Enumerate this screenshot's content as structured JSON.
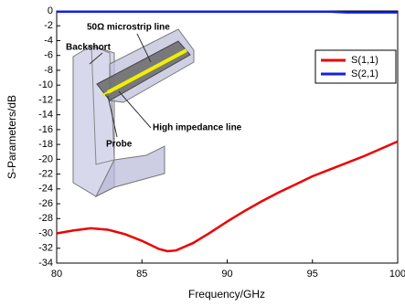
{
  "chart_data": {
    "type": "line",
    "xlabel": "Frequency/GHz",
    "ylabel": "S-Parameters/dB",
    "x": [
      80,
      81,
      82,
      83,
      84,
      85,
      86,
      86.5,
      87,
      88,
      89,
      90,
      91,
      92,
      93,
      94,
      95,
      96,
      97,
      98,
      99,
      100
    ],
    "series": [
      {
        "name": "S(1,1)",
        "color": "#ee0000",
        "values": [
          -30.0,
          -29.6,
          -29.3,
          -29.5,
          -30.1,
          -31.0,
          -32.1,
          -32.4,
          -32.3,
          -31.3,
          -29.9,
          -28.4,
          -27.0,
          -25.7,
          -24.5,
          -23.4,
          -22.3,
          -21.4,
          -20.5,
          -19.6,
          -18.6,
          -17.6
        ]
      },
      {
        "name": "S(2,1)",
        "color": "#1020e0",
        "values": [
          -0.1,
          -0.1,
          -0.1,
          -0.1,
          -0.1,
          -0.1,
          -0.1,
          -0.1,
          -0.1,
          -0.1,
          -0.1,
          -0.1,
          -0.1,
          -0.1,
          -0.1,
          -0.1,
          -0.1,
          -0.1,
          -0.2,
          -0.2,
          -0.2,
          -0.2
        ]
      }
    ],
    "xlim": [
      80,
      100
    ],
    "xticks": [
      80,
      85,
      90,
      95,
      100
    ],
    "ylim": [
      -34,
      0
    ],
    "yticks": [
      0,
      -2,
      -4,
      -6,
      -8,
      -10,
      -12,
      -14,
      -16,
      -18,
      -20,
      -22,
      -24,
      -26,
      -28,
      -30,
      -32,
      -34
    ],
    "grid": false,
    "legend": "upper right",
    "annotations": [
      "50Ω microstrip line",
      "Backshort",
      "High impedance line",
      "Probe"
    ]
  }
}
